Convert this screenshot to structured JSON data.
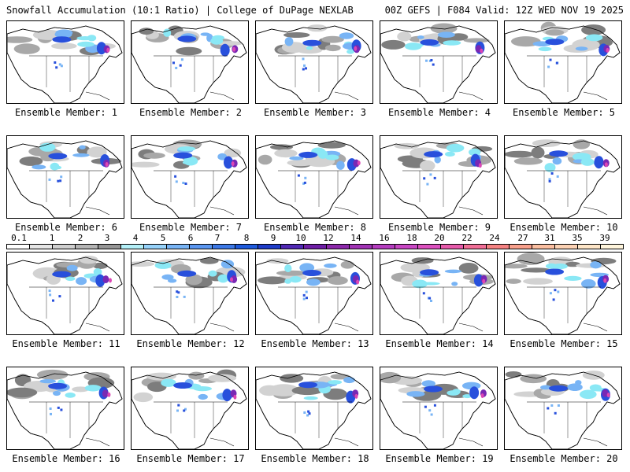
{
  "header": {
    "left": "Snowfall Accumulation (10:1 Ratio) | College of DuPage NEXLAB",
    "right": "00Z GEFS | F084 Valid: 12Z WED NOV 19 2025"
  },
  "members": [
    "Ensemble Member: 1",
    "Ensemble Member: 2",
    "Ensemble Member: 3",
    "Ensemble Member: 4",
    "Ensemble Member: 5",
    "Ensemble Member: 6",
    "Ensemble Member: 7",
    "Ensemble Member: 8",
    "Ensemble Member: 9",
    "Ensemble Member: 10",
    "Ensemble Member: 11",
    "Ensemble Member: 12",
    "Ensemble Member: 13",
    "Ensemble Member: 14",
    "Ensemble Member: 15",
    "Ensemble Member: 16",
    "Ensemble Member: 17",
    "Ensemble Member: 18",
    "Ensemble Member: 19",
    "Ensemble Member: 20"
  ],
  "colorbar": {
    "labels": [
      "0.1",
      "1",
      "2",
      "3",
      "4",
      "5",
      "6",
      "7",
      "8",
      "9",
      "10",
      "12",
      "14",
      "16",
      "18",
      "20",
      "22",
      "24",
      "27",
      "31",
      "35",
      "39"
    ],
    "colors": [
      "#ffffff",
      "#e6e6e6",
      "#cfcfcf",
      "#b4b4b4",
      "#969696",
      "#b4f0f8",
      "#96d2fa",
      "#78b4f5",
      "#5a96f0",
      "#3c78e6",
      "#1e5adc",
      "#1e3cc8",
      "#5028b4",
      "#6e1ea5",
      "#8c28aa",
      "#a032b4",
      "#b43cbe",
      "#c846c3",
      "#dc50be",
      "#e65aaa",
      "#f06e96",
      "#f58282",
      "#f8a08c",
      "#fabea0",
      "#fcd2b4",
      "#fee6c8",
      "#fff5dc"
    ]
  },
  "map_colors": {
    "land": "#ffffff",
    "outline": "#000000",
    "light_gray": "#d2d2d2",
    "mid_gray": "#a8a8a8",
    "dark_gray": "#7d7d7d",
    "cyan": "#8ae8f5",
    "light_blue": "#78b4f5",
    "blue": "#2850dc",
    "purple": "#7828b4",
    "magenta": "#dc46b4"
  }
}
